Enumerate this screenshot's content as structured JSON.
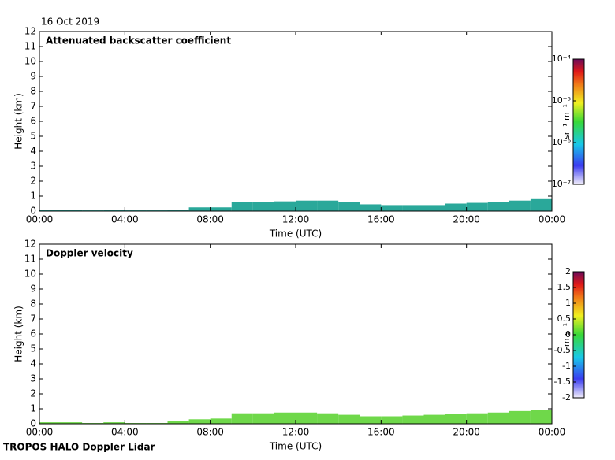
{
  "header": {
    "date": "16 Oct 2019",
    "footer": "TROPOS HALO Doppler Lidar"
  },
  "chart_data": [
    {
      "type": "profile",
      "title": "Attenuated backscatter coefficient",
      "x_label": "Time (UTC)",
      "y_label": "Height (km)",
      "x": [
        0,
        1,
        2,
        3,
        4,
        5,
        6,
        7,
        8,
        9,
        10,
        11,
        12,
        13,
        14,
        15,
        16,
        17,
        18,
        19,
        20,
        21,
        22,
        23
      ],
      "values": [
        0.1,
        0.1,
        0.05,
        0.1,
        0.05,
        0.05,
        0.1,
        0.25,
        0.25,
        0.6,
        0.6,
        0.65,
        0.7,
        0.7,
        0.6,
        0.45,
        0.4,
        0.4,
        0.4,
        0.5,
        0.55,
        0.6,
        0.7,
        0.8
      ],
      "color": "#2aa89a",
      "xlim": [
        0,
        24
      ],
      "xticks": [
        {
          "value": 0,
          "label": "00:00"
        },
        {
          "value": 4,
          "label": "04:00"
        },
        {
          "value": 8,
          "label": "08:00"
        },
        {
          "value": 12,
          "label": "12:00"
        },
        {
          "value": 16,
          "label": "16:00"
        },
        {
          "value": 20,
          "label": "20:00"
        },
        {
          "value": 24,
          "label": "00:00"
        }
      ],
      "ylim": [
        0,
        12
      ],
      "yticks": [
        0,
        1,
        2,
        3,
        4,
        5,
        6,
        7,
        8,
        9,
        10,
        11,
        12
      ],
      "colorbar": {
        "label": "sr⁻¹ m⁻¹",
        "log": true,
        "lim": [
          1e-07,
          0.0001
        ],
        "ticks": [
          {
            "value": 1e-07,
            "label": "10⁻⁷"
          },
          {
            "value": 1e-06,
            "label": "10⁻⁶"
          },
          {
            "value": 1e-05,
            "label": "10⁻⁵"
          },
          {
            "value": 0.0001,
            "label": "10⁻⁴"
          }
        ]
      }
    },
    {
      "type": "profile",
      "title": "Doppler velocity",
      "x_label": "Time (UTC)",
      "y_label": "Height (km)",
      "x": [
        0,
        1,
        2,
        3,
        4,
        5,
        6,
        7,
        8,
        9,
        10,
        11,
        12,
        13,
        14,
        15,
        16,
        17,
        18,
        19,
        20,
        21,
        22,
        23
      ],
      "values": [
        0.1,
        0.1,
        0.05,
        0.1,
        0.05,
        0.05,
        0.2,
        0.3,
        0.35,
        0.7,
        0.7,
        0.75,
        0.75,
        0.7,
        0.6,
        0.5,
        0.5,
        0.55,
        0.6,
        0.65,
        0.7,
        0.75,
        0.85,
        0.9
      ],
      "color": "#6fd84a",
      "xlim": [
        0,
        24
      ],
      "xticks": [
        {
          "value": 0,
          "label": "00:00"
        },
        {
          "value": 4,
          "label": "04:00"
        },
        {
          "value": 8,
          "label": "08:00"
        },
        {
          "value": 12,
          "label": "12:00"
        },
        {
          "value": 16,
          "label": "16:00"
        },
        {
          "value": 20,
          "label": "20:00"
        },
        {
          "value": 24,
          "label": "00:00"
        }
      ],
      "ylim": [
        0,
        12
      ],
      "yticks": [
        0,
        1,
        2,
        3,
        4,
        5,
        6,
        7,
        8,
        9,
        10,
        11,
        12
      ],
      "colorbar": {
        "label": "m s⁻¹",
        "log": false,
        "lim": [
          -2,
          2
        ],
        "ticks": [
          -2,
          -1.5,
          -1,
          -0.5,
          0,
          0.5,
          1,
          1.5,
          2
        ]
      }
    }
  ]
}
